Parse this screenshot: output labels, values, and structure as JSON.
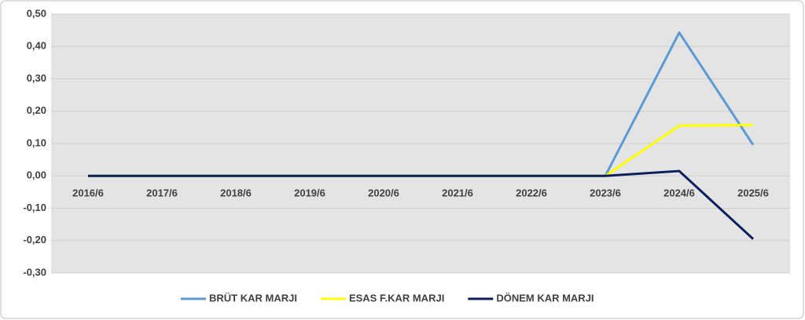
{
  "chart_data": {
    "type": "line",
    "categories": [
      "2016/6",
      "2017/6",
      "2018/6",
      "2019/6",
      "2020/6",
      "2021/6",
      "2022/6",
      "2023/6",
      "2024/6",
      "2025/6"
    ],
    "series": [
      {
        "name": "BRÜT KAR MARJI",
        "color": "#5b9bd5",
        "values": [
          0,
          0,
          0,
          0,
          0,
          0,
          0,
          0,
          0.443,
          0.096
        ]
      },
      {
        "name": "ESAS F.KAR MARJI",
        "color": "#ffff00",
        "values": [
          0,
          0,
          0,
          0,
          0,
          0,
          0,
          0,
          0.155,
          0.158
        ]
      },
      {
        "name": "DÖNEM KAR MARJI",
        "color": "#0b1f5c",
        "values": [
          0,
          0,
          0,
          0,
          0,
          0,
          0,
          0,
          0.015,
          -0.195
        ]
      }
    ],
    "ylim": [
      -0.3,
      0.5
    ],
    "yticks": [
      {
        "value": -0.3,
        "label": "-0,30"
      },
      {
        "value": -0.2,
        "label": "-0,20"
      },
      {
        "value": -0.1,
        "label": "-0,10"
      },
      {
        "value": 0,
        "label": "0,00"
      },
      {
        "value": 0.1,
        "label": "0,10"
      },
      {
        "value": 0.2,
        "label": "0,20"
      },
      {
        "value": 0.3,
        "label": "0,30"
      },
      {
        "value": 0.4,
        "label": "0,40"
      },
      {
        "value": 0.5,
        "label": "0,50"
      }
    ],
    "grid": true,
    "legend": "bottom"
  }
}
